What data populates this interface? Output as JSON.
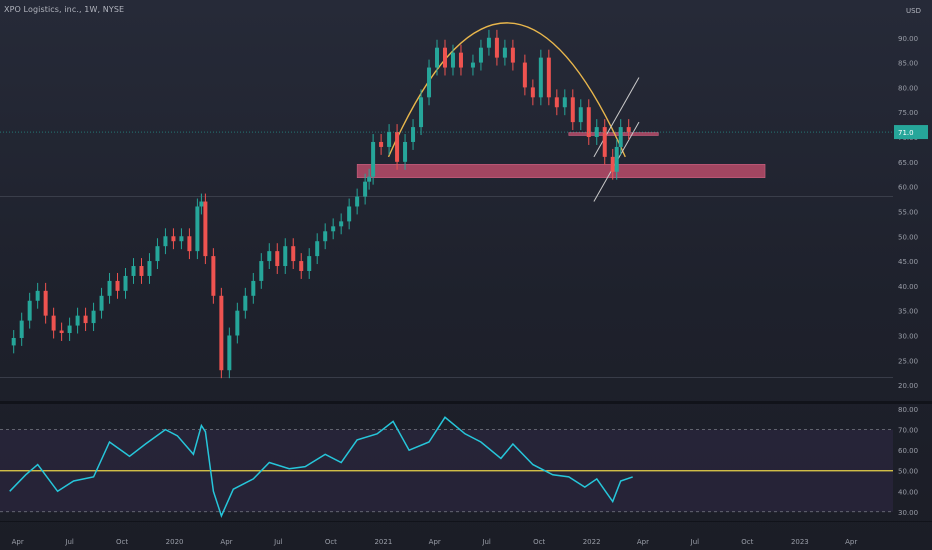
{
  "header": {
    "title": "XPO Logistics, inc., 1W, NYSE",
    "currency": "USD"
  },
  "chart_data": [
    {
      "type": "candlestick",
      "title": "XPO Logistics, inc., 1W, NYSE",
      "ylabel": "USD",
      "x_ticks": [
        "Apr",
        "Jul",
        "Oct",
        "2020",
        "Apr",
        "Jul",
        "Oct",
        "2021",
        "Apr",
        "Jul",
        "Oct",
        "2022",
        "Apr",
        "Jul",
        "Oct",
        "2023",
        "Apr"
      ],
      "y_ticks": [
        "20.00",
        "25.00",
        "30.00",
        "35.00",
        "40.00",
        "45.00",
        "50.00",
        "55.00",
        "60.00",
        "65.00",
        "70.00",
        "75.00",
        "80.00",
        "85.00",
        "90.00"
      ],
      "ylim": [
        17,
        96
      ],
      "last_price_label": "71.0",
      "colors": {
        "up": "#26a69a",
        "down": "#ef5350",
        "zone": "#b84c6a",
        "arc": "#e8b64c",
        "channel": "#c9c9c9"
      },
      "series": [
        {
          "name": "",
          "points": [
            [
              "2019-03-25",
              28,
              29.5
            ],
            [
              "2019-04-08",
              29.5,
              33
            ],
            [
              "2019-04-22",
              33,
              37
            ],
            [
              "2019-05-06",
              37,
              39
            ],
            [
              "2019-05-20",
              39,
              34
            ],
            [
              "2019-06-03",
              34,
              31
            ],
            [
              "2019-06-17",
              31,
              30.5
            ],
            [
              "2019-07-01",
              30.5,
              32
            ],
            [
              "2019-07-15",
              32,
              34
            ],
            [
              "2019-07-29",
              34,
              32.5
            ],
            [
              "2019-08-12",
              32.5,
              35
            ],
            [
              "2019-08-26",
              35,
              38
            ],
            [
              "2019-09-09",
              38,
              41
            ],
            [
              "2019-09-23",
              41,
              39
            ],
            [
              "2019-10-07",
              39,
              42
            ],
            [
              "2019-10-21",
              42,
              44
            ],
            [
              "2019-11-04",
              44,
              42
            ],
            [
              "2019-11-18",
              42,
              45
            ],
            [
              "2019-12-02",
              45,
              48
            ],
            [
              "2019-12-16",
              48,
              50
            ],
            [
              "2019-12-30",
              50,
              49
            ],
            [
              "2020-01-13",
              49,
              50
            ],
            [
              "2020-01-27",
              50,
              47
            ],
            [
              "2020-02-10",
              47,
              56
            ],
            [
              "2020-02-17",
              56,
              57
            ],
            [
              "2020-02-24",
              57,
              46
            ],
            [
              "2020-03-09",
              46,
              38
            ],
            [
              "2020-03-23",
              38,
              23
            ],
            [
              "2020-04-06",
              23,
              30
            ],
            [
              "2020-04-20",
              30,
              35
            ],
            [
              "2020-05-04",
              35,
              38
            ],
            [
              "2020-05-18",
              38,
              41
            ],
            [
              "2020-06-01",
              41,
              45
            ],
            [
              "2020-06-15",
              45,
              47
            ],
            [
              "2020-06-29",
              47,
              44
            ],
            [
              "2020-07-13",
              44,
              48
            ],
            [
              "2020-07-27",
              48,
              45
            ],
            [
              "2020-08-10",
              45,
              43
            ],
            [
              "2020-08-24",
              43,
              46
            ],
            [
              "2020-09-07",
              46,
              49
            ],
            [
              "2020-09-21",
              49,
              51
            ],
            [
              "2020-10-05",
              51,
              52
            ],
            [
              "2020-10-19",
              52,
              53
            ],
            [
              "2020-11-02",
              53,
              56
            ],
            [
              "2020-11-16",
              56,
              58
            ],
            [
              "2020-11-30",
              58,
              61
            ],
            [
              "2020-12-07",
              61,
              62
            ],
            [
              "2020-12-14",
              62,
              69
            ],
            [
              "2020-12-28",
              69,
              68
            ],
            [
              "2021-01-11",
              68,
              71
            ],
            [
              "2021-01-25",
              71,
              65
            ],
            [
              "2021-02-08",
              65,
              69
            ],
            [
              "2021-02-22",
              69,
              72
            ],
            [
              "2021-03-08",
              72,
              78
            ],
            [
              "2021-03-22",
              78,
              84
            ],
            [
              "2021-04-05",
              84,
              88
            ],
            [
              "2021-04-19",
              88,
              84
            ],
            [
              "2021-05-03",
              84,
              87
            ],
            [
              "2021-05-17",
              87,
              84
            ],
            [
              "2021-06-07",
              84,
              85
            ],
            [
              "2021-06-21",
              85,
              88
            ],
            [
              "2021-07-05",
              88,
              90
            ],
            [
              "2021-07-19",
              90,
              86
            ],
            [
              "2021-08-02",
              86,
              88
            ],
            [
              "2021-08-16",
              88,
              85
            ],
            [
              "2021-09-06",
              85,
              80
            ],
            [
              "2021-09-20",
              80,
              78
            ],
            [
              "2021-10-04",
              78,
              86
            ],
            [
              "2021-10-18",
              86,
              78
            ],
            [
              "2021-11-01",
              78,
              76
            ],
            [
              "2021-11-15",
              76,
              78
            ],
            [
              "2021-11-29",
              78,
              73
            ],
            [
              "2021-12-13",
              73,
              76
            ],
            [
              "2021-12-27",
              76,
              70
            ],
            [
              "2022-01-10",
              70,
              72
            ],
            [
              "2022-01-24",
              72,
              66
            ],
            [
              "2022-02-07",
              66,
              63
            ],
            [
              "2022-02-14",
              63,
              68
            ],
            [
              "2022-02-21",
              68,
              72
            ],
            [
              "2022-03-07",
              72,
              71
            ]
          ]
        }
      ],
      "annotations": [
        {
          "type": "zone",
          "from": "2020-11-16",
          "to": "2022-11-01",
          "low": 61.8,
          "high": 64.5
        },
        {
          "type": "zone",
          "from": "2021-11-22",
          "to": "2022-04-28",
          "low": 70.3,
          "high": 70.9
        },
        {
          "type": "arc",
          "from": "2021-01-10",
          "to": "2022-03-01",
          "peak": 93
        },
        {
          "type": "channel",
          "from": "2022-01-05",
          "to": "2022-03-25"
        }
      ]
    },
    {
      "type": "line",
      "title": "",
      "y_ticks": [
        "30.00",
        "40.00",
        "50.00",
        "60.00",
        "70.00",
        "80.00"
      ],
      "ylim": [
        26,
        82
      ],
      "levels": {
        "upper": 70,
        "middle": 50,
        "lower": 30
      },
      "series": [
        {
          "name": "",
          "values": [
            [
              "2019-03-18",
              40
            ],
            [
              "2019-04-15",
              48
            ],
            [
              "2019-05-06",
              53
            ],
            [
              "2019-06-10",
              40
            ],
            [
              "2019-07-08",
              45
            ],
            [
              "2019-08-12",
              47
            ],
            [
              "2019-09-09",
              64
            ],
            [
              "2019-10-14",
              57
            ],
            [
              "2019-11-11",
              63
            ],
            [
              "2019-12-16",
              70
            ],
            [
              "2020-01-06",
              67
            ],
            [
              "2020-02-03",
              58
            ],
            [
              "2020-02-17",
              72
            ],
            [
              "2020-02-24",
              69
            ],
            [
              "2020-03-09",
              40
            ],
            [
              "2020-03-23",
              28
            ],
            [
              "2020-04-13",
              41
            ],
            [
              "2020-05-18",
              46
            ],
            [
              "2020-06-15",
              54
            ],
            [
              "2020-07-20",
              51
            ],
            [
              "2020-08-17",
              52
            ],
            [
              "2020-09-21",
              58
            ],
            [
              "2020-10-19",
              54
            ],
            [
              "2020-11-16",
              65
            ],
            [
              "2020-12-21",
              68
            ],
            [
              "2021-01-18",
              74
            ],
            [
              "2021-02-15",
              60
            ],
            [
              "2021-03-22",
              64
            ],
            [
              "2021-04-19",
              76
            ],
            [
              "2021-05-24",
              68
            ],
            [
              "2021-06-21",
              64
            ],
            [
              "2021-07-26",
              56
            ],
            [
              "2021-08-16",
              63
            ],
            [
              "2021-09-20",
              53
            ],
            [
              "2021-10-25",
              48
            ],
            [
              "2021-11-22",
              47
            ],
            [
              "2021-12-20",
              42
            ],
            [
              "2022-01-10",
              46
            ],
            [
              "2022-02-07",
              35
            ],
            [
              "2022-02-21",
              45
            ],
            [
              "2022-03-14",
              47
            ]
          ]
        }
      ]
    }
  ]
}
